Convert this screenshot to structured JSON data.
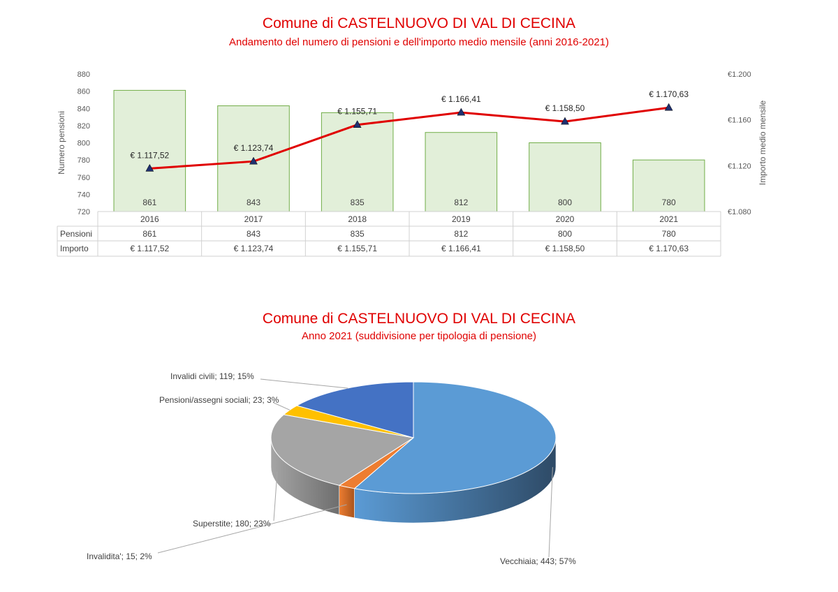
{
  "chart_data": [
    {
      "type": "bar",
      "title": "Comune di CASTELNUOVO DI VAL DI CECINA",
      "subtitle": "Andamento del numero di pensioni e dell'importo medio mensile (anni 2016-2021)",
      "categories": [
        "2016",
        "2017",
        "2018",
        "2019",
        "2020",
        "2021"
      ],
      "ylabel": "Numero pensioni",
      "y2label": "Importo medio mensile",
      "ylim": [
        720,
        880
      ],
      "yticks": [
        "720",
        "740",
        "760",
        "780",
        "800",
        "820",
        "840",
        "860",
        "880"
      ],
      "y2lim": [
        1080,
        1200
      ],
      "y2ticks": [
        "€1.080",
        "€1.120",
        "€1.160",
        "€1.200"
      ],
      "bar_color": "#e2efd9",
      "bar_edge": "#70ad47",
      "line_color": "#e00000",
      "marker_color": "#1f3070",
      "series": [
        {
          "name": "Pensioni",
          "kind": "bar",
          "values": [
            861,
            843,
            835,
            812,
            800,
            780
          ],
          "labels": [
            "861",
            "843",
            "835",
            "812",
            "800",
            "780"
          ]
        },
        {
          "name": "Importo",
          "kind": "line",
          "values": [
            1117.52,
            1123.74,
            1155.71,
            1166.41,
            1158.5,
            1170.63
          ],
          "labels": [
            "€ 1.117,52",
            "€ 1.123,74",
            "€ 1.155,71",
            "€ 1.166,41",
            "€ 1.158,50",
            "€ 1.170,63"
          ]
        }
      ],
      "grid": false,
      "legend": "data table below axis"
    },
    {
      "type": "pie",
      "title": "Comune di CASTELNUOVO DI VAL DI CECINA",
      "subtitle": "Anno 2021 (suddivisione per tipologia di pensione)",
      "style": "3d",
      "slices": [
        {
          "label": "Vecchiaia; 443; 57%",
          "value": 443,
          "color": "#5b9bd5",
          "side": "#2e4a66"
        },
        {
          "label": "Invalidita'; 15; 2%",
          "value": 15,
          "color": "#ed7d31",
          "side": "#a9541c"
        },
        {
          "label": "Superstite; 180; 23%",
          "value": 180,
          "color": "#a5a5a5",
          "side": "#6e6e6e"
        },
        {
          "label": "Pensioni/assegni sociali; 23; 3%",
          "value": 23,
          "color": "#ffc000",
          "side": "#b38600"
        },
        {
          "label": "Invalidi civili; 119; 15%",
          "value": 119,
          "color": "#4472c4",
          "side": "#2a4a86"
        }
      ]
    }
  ]
}
